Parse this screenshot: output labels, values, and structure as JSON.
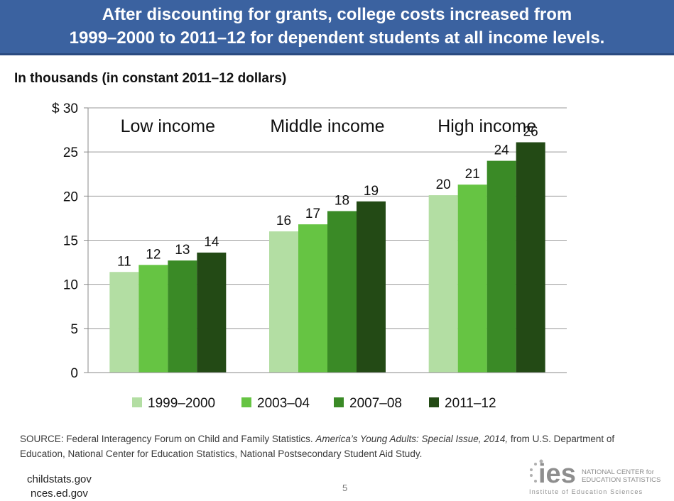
{
  "slide": {
    "title_line1": "After discounting for grants, college costs increased from",
    "title_line2": "1999–2000 to 2011–12 for dependent students at all income levels.",
    "subtitle": "In thousands (in constant 2011–12 dollars)",
    "source_prefix": "SOURCE: Federal Interagency Forum on Child and Family Statistics. ",
    "source_title": "America’s Young Adults: Special Issue, 2014,",
    "source_suffix": " from U.S. Department of Education, National Center for Education Statistics, National Postsecondary Student Aid Study.",
    "link1": "childstats.gov",
    "link2": "nces.ed.gov",
    "page_number": "5",
    "logo_text": "ies",
    "logo_line1": "NATIONAL CENTER for",
    "logo_line2": "EDUCATION STATISTICS",
    "logo_line3": "Institute of Education Sciences"
  },
  "chart_data": {
    "type": "bar",
    "title": "After discounting for grants, college costs increased from 1999–2000 to 2011–12 for dependent students at all income levels.",
    "ylabel": "In thousands (in constant 2011–12 dollars)",
    "xlabel": "",
    "ylim": [
      0,
      30
    ],
    "yticks": [
      0,
      5,
      10,
      15,
      20,
      25,
      30
    ],
    "ytick_labels": [
      "0",
      "5",
      "10",
      "15",
      "20",
      "25",
      "$ 30"
    ],
    "grid": true,
    "legend_position": "bottom",
    "categories": [
      "Low income",
      "Middle income",
      "High income"
    ],
    "series": [
      {
        "name": "1999–2000",
        "color": "#b3dea3",
        "values": [
          11.4,
          16.0,
          20.1
        ],
        "labels": [
          "11",
          "16",
          "20"
        ]
      },
      {
        "name": "2003–04",
        "color": "#66c443",
        "values": [
          12.2,
          16.8,
          21.3
        ],
        "labels": [
          "12",
          "17",
          "21"
        ]
      },
      {
        "name": "2007–08",
        "color": "#3a8a26",
        "values": [
          12.7,
          18.3,
          24.0
        ],
        "labels": [
          "13",
          "18",
          "24"
        ]
      },
      {
        "name": "2011–12",
        "color": "#234a15",
        "values": [
          13.6,
          19.4,
          26.1
        ],
        "labels": [
          "14",
          "19",
          "26"
        ]
      }
    ]
  }
}
